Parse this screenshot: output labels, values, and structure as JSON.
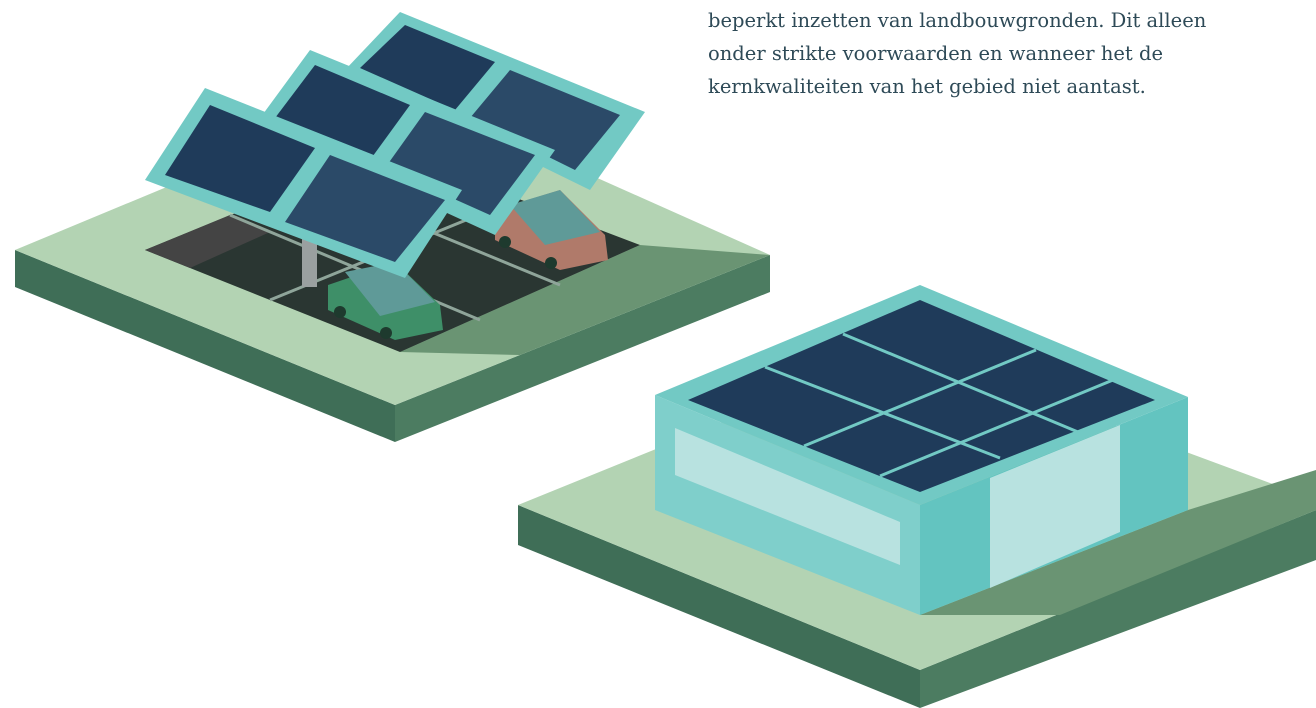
{
  "text": {
    "lines": [
      "beperkt inzetten van landbouwgronden. Dit alleen",
      "onder strikte voorwaarden en wanneer het de",
      "kernkwaliteiten van het gebied niet aantast."
    ]
  }
}
